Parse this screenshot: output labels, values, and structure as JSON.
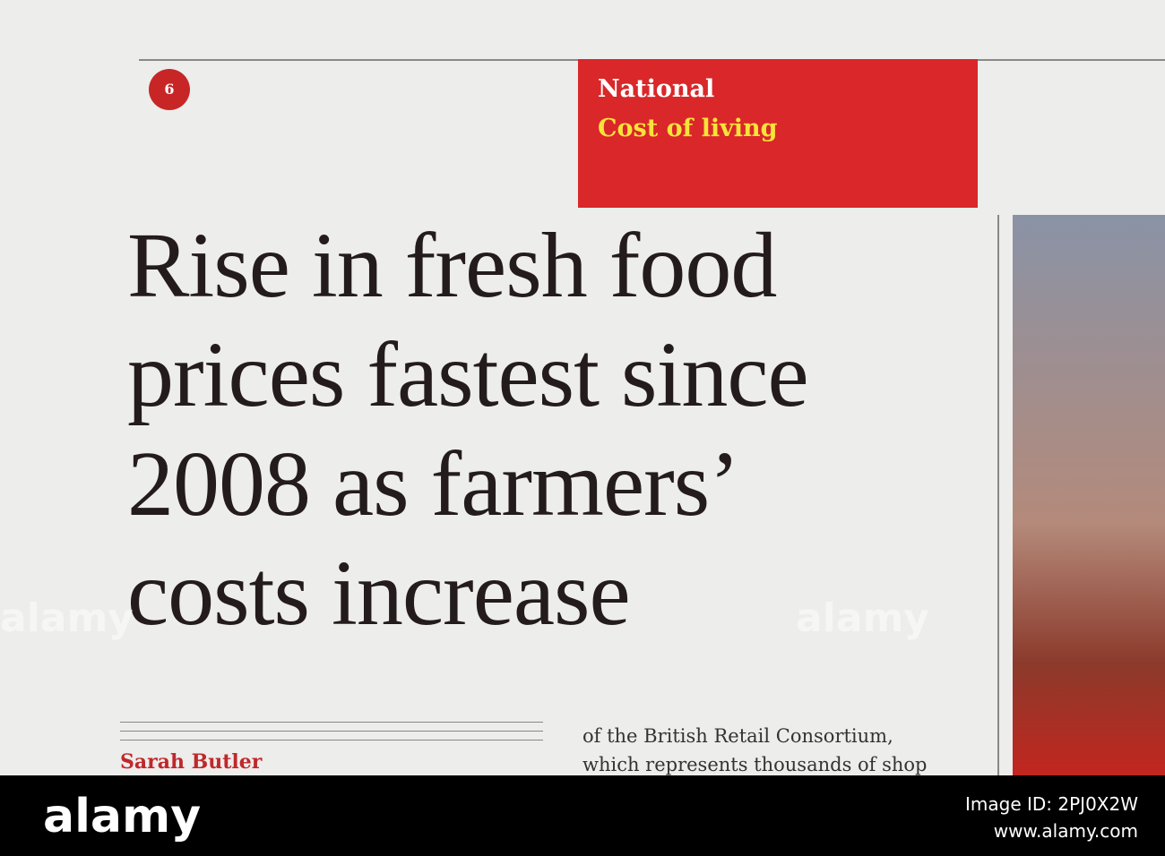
{
  "page_number": "6",
  "section": {
    "name": "National",
    "topic": "Cost of living"
  },
  "headline": [
    "Rise in fresh food",
    "prices fastest since",
    "2008 as farmers’",
    "costs increase"
  ],
  "byline": "Sarah Butler",
  "body": [
    "of the British Retail Consortium,",
    "which represents thousands of shop"
  ],
  "watermark": "alamy",
  "footer": {
    "brand": "alamy",
    "image_id": "Image ID: 2PJ0X2W",
    "site": "www.alamy.com"
  }
}
